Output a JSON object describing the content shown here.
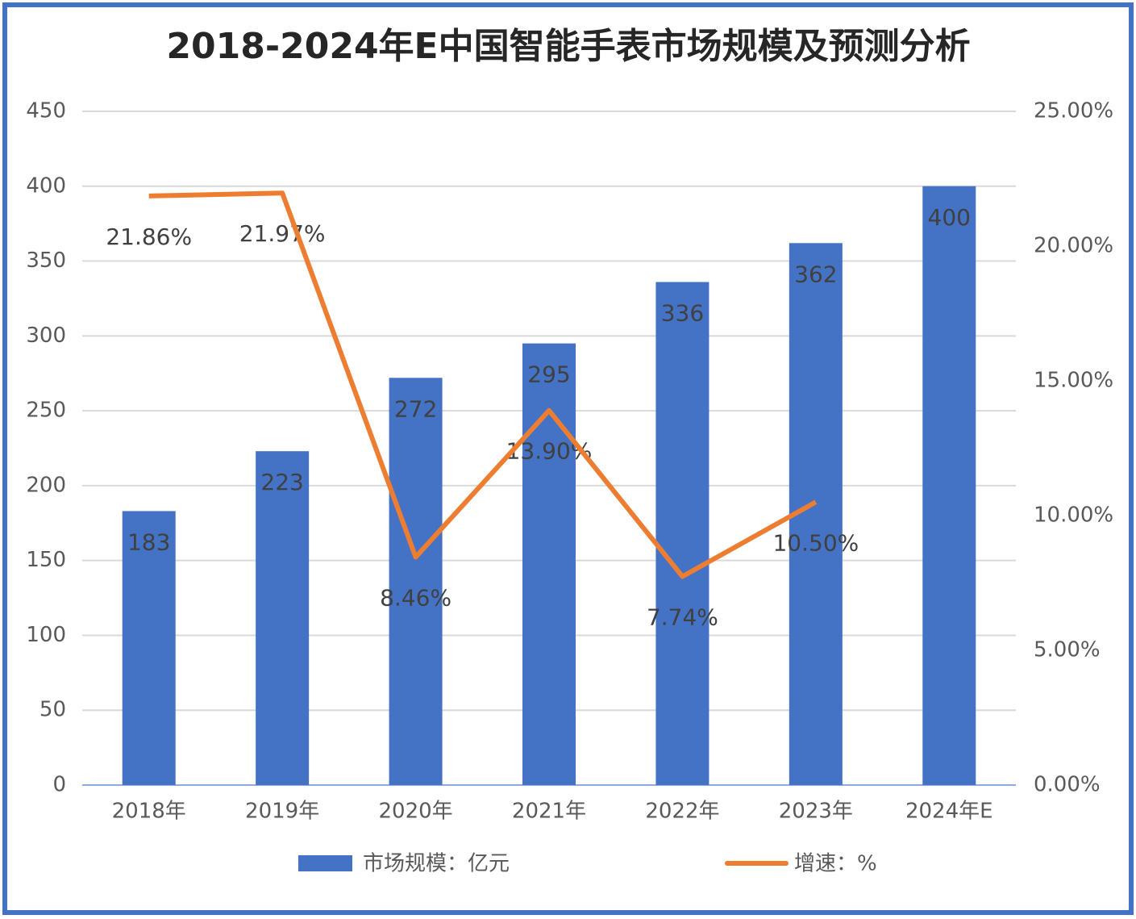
{
  "chart_data": {
    "type": "bar-line",
    "title": "2018-2024年E中国智能手表市场规模及预测分析",
    "categories": [
      "2018年",
      "2019年",
      "2020年",
      "2021年",
      "2022年",
      "2023年",
      "2024年E"
    ],
    "series": [
      {
        "name": "市场规模：亿元",
        "type": "bar",
        "color": "#4472c4",
        "values": [
          183,
          223,
          272,
          295,
          336,
          362,
          400
        ]
      },
      {
        "name": "增速：%",
        "type": "line",
        "color": "#ed7d31",
        "axis": "y2",
        "values": [
          21.86,
          21.97,
          8.46,
          13.9,
          7.74,
          10.5,
          null
        ],
        "value_labels": [
          "21.86%",
          "21.97%",
          "8.46%",
          "13.90%",
          "7.74%",
          "10.50%",
          null
        ]
      }
    ],
    "ylim": [
      0,
      450
    ],
    "yticks": [
      0,
      50,
      100,
      150,
      200,
      250,
      300,
      350,
      400,
      450
    ],
    "y2lim": [
      0,
      25
    ],
    "y2ticks": [
      {
        "value": 0,
        "label": "0.00%"
      },
      {
        "value": 5,
        "label": "5.00%"
      },
      {
        "value": 10,
        "label": "10.00%"
      },
      {
        "value": 15,
        "label": "15.00%"
      },
      {
        "value": 20,
        "label": "20.00%"
      },
      {
        "value": 25,
        "label": "25.00%"
      }
    ],
    "grid": true,
    "legend": "bottom"
  }
}
